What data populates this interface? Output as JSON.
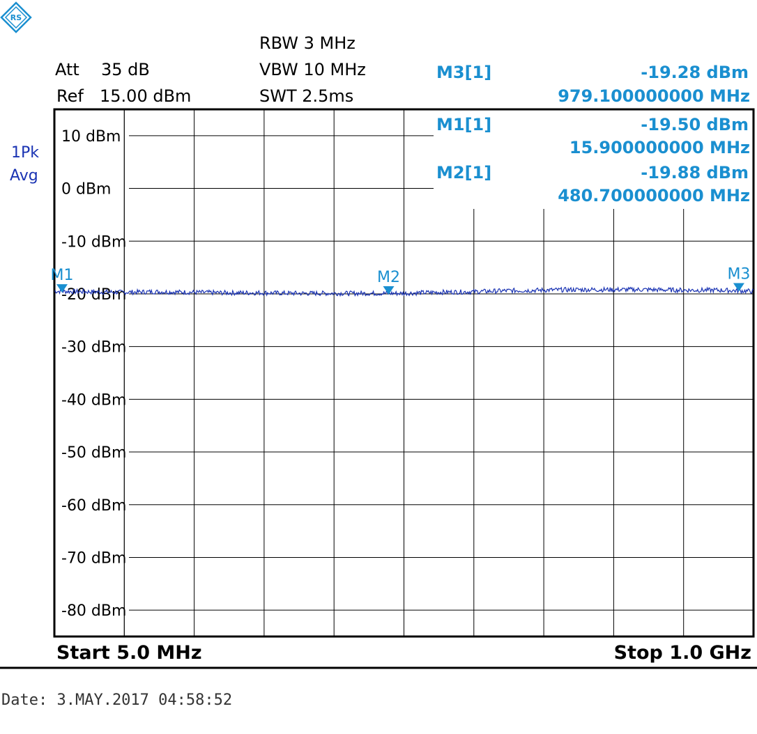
{
  "header": {
    "att_label": "Att",
    "att_value": "35 dB",
    "ref_label": "Ref",
    "ref_value": "15.00 dBm",
    "rbw": "RBW 3 MHz",
    "vbw": "VBW 10 MHz",
    "swt": "SWT 2.5ms"
  },
  "trace_info": {
    "line1": "1Pk",
    "line2": "Avg"
  },
  "markers": [
    {
      "name": "M3[1]",
      "level": "-19.28 dBm",
      "freq": "979.100000000 MHz",
      "label": "M3"
    },
    {
      "name": "M1[1]",
      "level": "-19.50 dBm",
      "freq": "15.900000000 MHz",
      "label": "M1"
    },
    {
      "name": "M2[1]",
      "level": "-19.88 dBm",
      "freq": "480.700000000 MHz",
      "label": "M2"
    }
  ],
  "footer": {
    "start": "Start 5.0 MHz",
    "stop": "Stop 1.0 GHz",
    "date": "Date: 3.MAY.2017  04:58:52"
  },
  "colors": {
    "trace": "#1a33b3",
    "marker": "#1a8fd0",
    "grid": "#000000"
  },
  "icons": {
    "logo": "rohde-schwarz-logo-icon",
    "marker": "triangle-down-marker-icon"
  },
  "chart_data": {
    "type": "line",
    "x_unit": "MHz",
    "y_unit": "dBm",
    "xlim": [
      5.0,
      1000.0
    ],
    "ylim": [
      -85,
      15
    ],
    "grid": true,
    "y_ticks": [
      "10 dBm",
      "0 dBm",
      "-10 dBm",
      "-20 dBm",
      "-30 dBm",
      "-40 dBm",
      "-50 dBm",
      "-60 dBm",
      "-70 dBm",
      "-80 dBm"
    ],
    "y_tick_values": [
      10,
      0,
      -10,
      -20,
      -30,
      -40,
      -50,
      -60,
      -70,
      -80
    ],
    "series": [
      {
        "x": [
          5,
          50,
          100,
          150,
          200,
          250,
          300,
          350,
          400,
          450,
          500,
          550,
          600,
          650,
          700,
          750,
          800,
          850,
          900,
          950,
          1000
        ],
        "y": [
          -19.5,
          -19.6,
          -19.7,
          -19.6,
          -19.7,
          -19.8,
          -19.8,
          -19.9,
          -19.9,
          -19.9,
          -19.9,
          -19.7,
          -19.6,
          -19.4,
          -19.3,
          -19.2,
          -19.2,
          -19.2,
          -19.3,
          -19.3,
          -19.5
        ]
      }
    ],
    "markers": [
      {
        "label": "M1",
        "x": 15.9,
        "y": -19.5
      },
      {
        "label": "M2",
        "x": 480.7,
        "y": -19.88
      },
      {
        "label": "M3",
        "x": 979.1,
        "y": -19.28
      }
    ]
  }
}
